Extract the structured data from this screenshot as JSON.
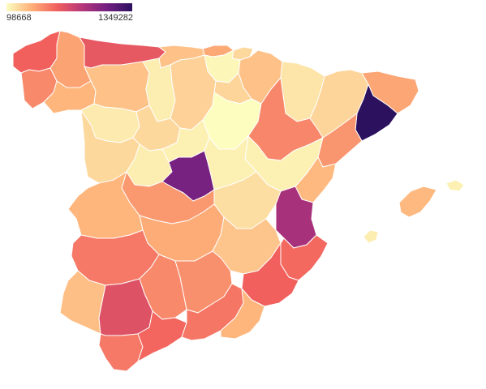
{
  "legend": {
    "min_label": "98668",
    "max_label": "1349282",
    "min_value": 98668,
    "max_value": 1349282,
    "colors": [
      "#fcfdbf",
      "#feb078",
      "#f1605d",
      "#b63679",
      "#721f81",
      "#2c115f"
    ]
  },
  "regions": [
    {
      "id": "a-coruna",
      "value": 600000
    },
    {
      "id": "lugo",
      "value": 390000
    },
    {
      "id": "pontevedra",
      "value": 470000
    },
    {
      "id": "ourense",
      "value": 330000
    },
    {
      "id": "asturias",
      "value": 640000
    },
    {
      "id": "cantabria",
      "value": 290000
    },
    {
      "id": "bizkaia",
      "value": 370000
    },
    {
      "id": "gipuzkoa",
      "value": 220000
    },
    {
      "id": "araba",
      "value": 120000
    },
    {
      "id": "navarra",
      "value": 290000
    },
    {
      "id": "la-rioja",
      "value": 230000
    },
    {
      "id": "leon",
      "value": 290000
    },
    {
      "id": "palencia",
      "value": 150000
    },
    {
      "id": "burgos",
      "value": 240000
    },
    {
      "id": "zamora",
      "value": 160000
    },
    {
      "id": "valladolid",
      "value": 220000
    },
    {
      "id": "soria",
      "value": 100000
    },
    {
      "id": "salamanca",
      "value": 220000
    },
    {
      "id": "segovia",
      "value": 140000
    },
    {
      "id": "avila",
      "value": 150000
    },
    {
      "id": "huesca",
      "value": 180000
    },
    {
      "id": "zaragoza",
      "value": 480000
    },
    {
      "id": "teruel",
      "value": 140000
    },
    {
      "id": "lleida",
      "value": 230000
    },
    {
      "id": "girona",
      "value": 380000
    },
    {
      "id": "barcelona",
      "value": 1349282
    },
    {
      "id": "tarragona",
      "value": 430000
    },
    {
      "id": "madrid",
      "value": 1080000
    },
    {
      "id": "guadalajara",
      "value": 140000
    },
    {
      "id": "cuenca",
      "value": 200000
    },
    {
      "id": "toledo",
      "value": 420000
    },
    {
      "id": "ciudad-real",
      "value": 360000
    },
    {
      "id": "albacete",
      "value": 280000
    },
    {
      "id": "caceres",
      "value": 330000
    },
    {
      "id": "badajoz",
      "value": 520000
    },
    {
      "id": "castellon",
      "value": 320000
    },
    {
      "id": "valencia",
      "value": 900000
    },
    {
      "id": "alicante",
      "value": 570000
    },
    {
      "id": "murcia",
      "value": 600000
    },
    {
      "id": "huelva",
      "value": 300000
    },
    {
      "id": "sevilla",
      "value": 680000
    },
    {
      "id": "cordoba",
      "value": 470000
    },
    {
      "id": "jaen",
      "value": 450000
    },
    {
      "id": "cadiz",
      "value": 520000
    },
    {
      "id": "malaga",
      "value": 580000
    },
    {
      "id": "granada",
      "value": 530000
    },
    {
      "id": "almeria",
      "value": 330000
    },
    {
      "id": "mallorca",
      "value": 320000
    },
    {
      "id": "menorca",
      "value": 140000
    },
    {
      "id": "ibiza",
      "value": 150000
    }
  ]
}
